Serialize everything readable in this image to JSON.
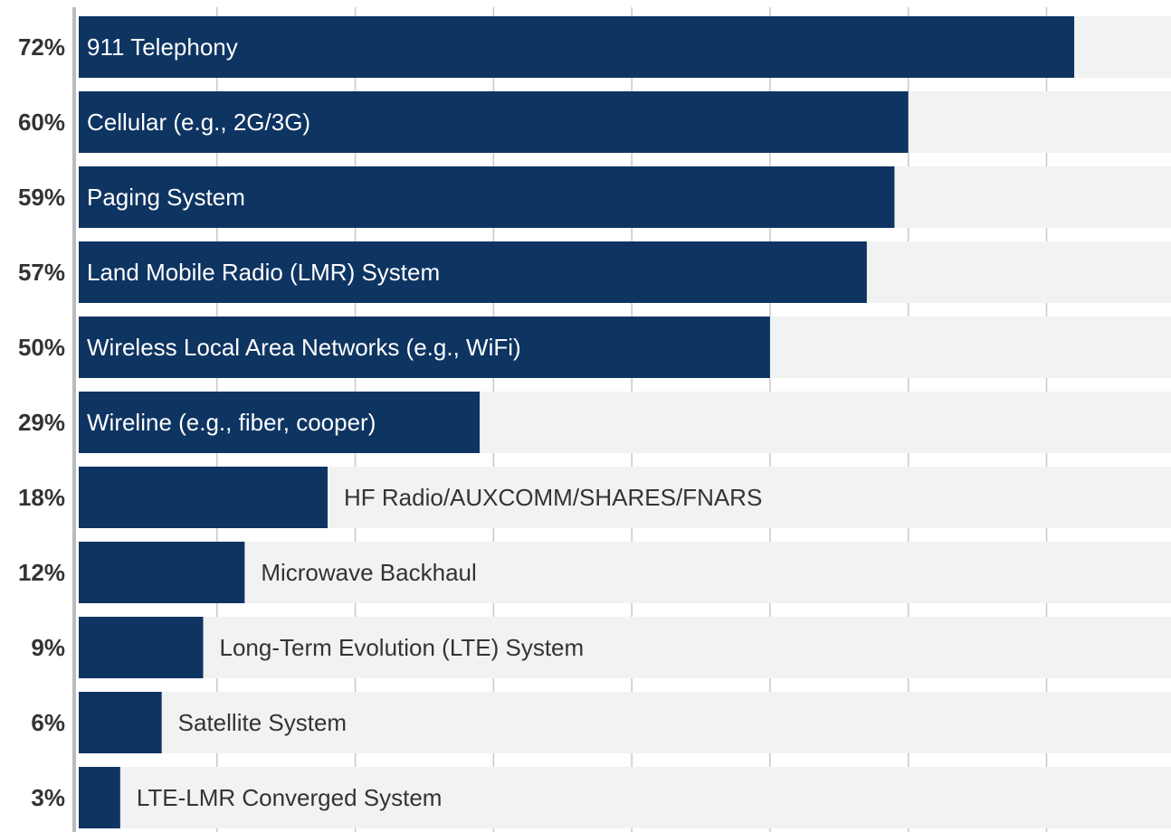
{
  "chart_data": {
    "type": "barh",
    "categories": [
      "911 Telephony",
      "Cellular (e.g., 2G/3G)",
      "Paging System",
      "Land Mobile Radio (LMR) System",
      "Wireless Local Area Networks (e.g., WiFi)",
      "Wireline (e.g., fiber, cooper)",
      "HF Radio/AUXCOMM/SHARES/FNARS",
      "Microwave Backhaul",
      "Long-Term Evolution (LTE) System",
      "Satellite System",
      "LTE-LMR Converged System"
    ],
    "values": [
      72,
      60,
      59,
      57,
      50,
      29,
      18,
      12,
      9,
      6,
      3
    ],
    "value_labels": [
      "72%",
      "60%",
      "59%",
      "57%",
      "50%",
      "29%",
      "18%",
      "12%",
      "9%",
      "6%",
      "3%"
    ],
    "color": "#0e3461",
    "track_color": "#f1f2f2",
    "xlim": [
      0,
      79
    ],
    "xticks": [
      10,
      20,
      30,
      40,
      50,
      60,
      70
    ],
    "grid": true
  }
}
